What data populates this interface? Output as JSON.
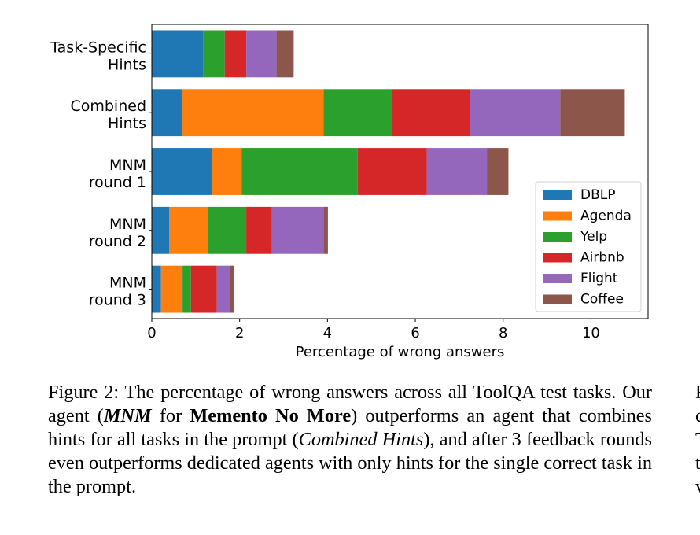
{
  "chart_data": {
    "type": "bar",
    "orientation": "horizontal",
    "stacked": true,
    "categories": [
      [
        "Task-Specific",
        "Hints"
      ],
      [
        "Combined",
        "Hints"
      ],
      [
        "MNM",
        "round 1"
      ],
      [
        "MNM",
        "round 2"
      ],
      [
        "MNM",
        "round 3"
      ]
    ],
    "series": [
      {
        "name": "DBLP",
        "color": "#1f77b4",
        "values": [
          1.17,
          0.68,
          1.37,
          0.4,
          0.21
        ]
      },
      {
        "name": "Agenda",
        "color": "#ff7f0e",
        "values": [
          0.0,
          3.23,
          0.68,
          0.88,
          0.49
        ]
      },
      {
        "name": "Yelp",
        "color": "#2ca02c",
        "values": [
          0.49,
          1.57,
          2.64,
          0.87,
          0.19
        ]
      },
      {
        "name": "Airbnb",
        "color": "#d62728",
        "values": [
          0.49,
          1.76,
          1.57,
          0.58,
          0.59
        ]
      },
      {
        "name": "Flight",
        "color": "#9467bd",
        "values": [
          0.69,
          2.06,
          1.37,
          1.18,
          0.3
        ]
      },
      {
        "name": "Coffee",
        "color": "#8c564b",
        "values": [
          0.39,
          1.47,
          0.49,
          0.1,
          0.1
        ]
      }
    ],
    "xlabel": "Percentage of wrong answers",
    "xticks": [
      0,
      2,
      4,
      6,
      8,
      10
    ],
    "xlim": [
      0,
      11.3
    ],
    "legend_position": "lower-right"
  },
  "caption": {
    "figure_label": "Figure 2:",
    "text1": " The percentage of wrong answers across all ToolQA test tasks. Our agent (",
    "mnm": "MNM",
    "text2": " for ",
    "memento": "Memento No More",
    "text3": ") outperforms an agent that combines hints for all tasks in the prompt (",
    "combined": "Combined Hints",
    "text4": "), and after 3 feedback rounds even outperforms dedicated agents with only hints for the single correct task in the prompt."
  },
  "right_column_fragments": [
    "F",
    "c",
    "T",
    "t",
    "v"
  ]
}
